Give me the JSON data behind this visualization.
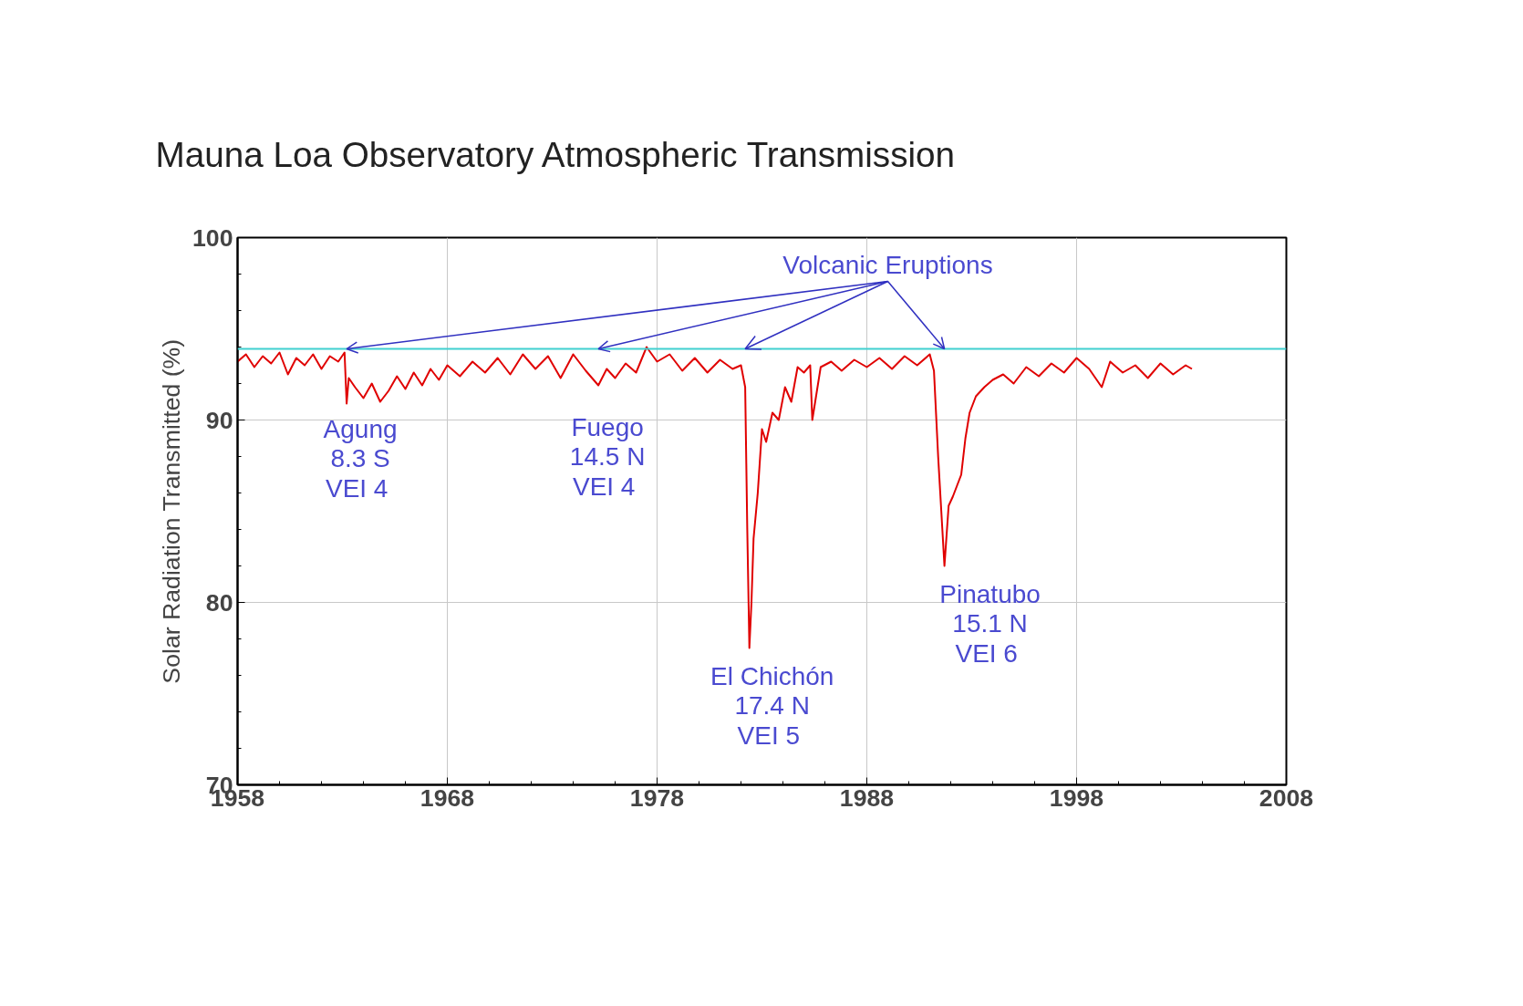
{
  "chart_data": {
    "type": "line",
    "title": "Mauna Loa Observatory Atmospheric Transmission",
    "ylabel": "Solar Radiation Transmitted (%)",
    "xlim": [
      1958,
      2008
    ],
    "xticks": [
      1958,
      1968,
      1978,
      1988,
      1998,
      2008
    ],
    "ylim": [
      70,
      100
    ],
    "yticks": [
      70,
      80,
      90,
      100
    ],
    "grid": true,
    "line_style": "solid",
    "marker": "none",
    "series": [
      {
        "color": "#e00000",
        "x": [
          1958,
          1958.4,
          1958.8,
          1959.2,
          1959.6,
          1960,
          1960.4,
          1960.8,
          1961.2,
          1961.6,
          1962,
          1962.4,
          1962.8,
          1963.1,
          1963.2,
          1963.3,
          1963.6,
          1964,
          1964.4,
          1964.8,
          1965.2,
          1965.6,
          1966,
          1966.4,
          1966.8,
          1967.2,
          1967.6,
          1968,
          1968.6,
          1969.2,
          1969.8,
          1970.4,
          1971,
          1971.6,
          1972.2,
          1972.8,
          1973.4,
          1974,
          1974.6,
          1975.2,
          1975.6,
          1976,
          1976.5,
          1977,
          1977.5,
          1978,
          1978.6,
          1979.2,
          1979.8,
          1980.4,
          1981,
          1981.6,
          1982,
          1982.2,
          1982.3,
          1982.4,
          1982.5,
          1982.6,
          1982.8,
          1983,
          1983.2,
          1983.5,
          1983.8,
          1984.1,
          1984.4,
          1984.7,
          1985,
          1985.3,
          1985.4,
          1985.8,
          1986.3,
          1986.8,
          1987.4,
          1988,
          1988.6,
          1989.2,
          1989.8,
          1990.4,
          1991,
          1991.2,
          1991.4,
          1991.6,
          1991.7,
          1991.9,
          1992.1,
          1992.3,
          1992.5,
          1992.7,
          1992.9,
          1993.2,
          1993.6,
          1994,
          1994.5,
          1995,
          1995.6,
          1996.2,
          1996.8,
          1997.4,
          1998,
          1998.6,
          1999.2,
          1999.6,
          2000.2,
          2000.8,
          2001.4,
          2002,
          2002.6,
          2003.2,
          2003.5
        ],
        "values": [
          93.2,
          93.6,
          92.9,
          93.5,
          93.1,
          93.7,
          92.5,
          93.4,
          93.0,
          93.6,
          92.8,
          93.5,
          93.2,
          93.7,
          90.9,
          92.3,
          91.8,
          91.2,
          92.0,
          91.0,
          91.6,
          92.4,
          91.7,
          92.6,
          91.9,
          92.8,
          92.2,
          93.0,
          92.4,
          93.2,
          92.6,
          93.4,
          92.5,
          93.6,
          92.8,
          93.5,
          92.3,
          93.6,
          92.7,
          91.9,
          92.8,
          92.3,
          93.1,
          92.6,
          94.0,
          93.2,
          93.6,
          92.7,
          93.4,
          92.6,
          93.3,
          92.8,
          93.0,
          91.8,
          84.0,
          77.5,
          80.0,
          83.5,
          86.0,
          89.5,
          88.8,
          90.4,
          90.0,
          91.8,
          91.0,
          92.9,
          92.6,
          93.0,
          90.0,
          92.9,
          93.2,
          92.7,
          93.3,
          92.9,
          93.4,
          92.8,
          93.5,
          93.0,
          93.6,
          92.7,
          88.0,
          84.0,
          82.0,
          85.3,
          85.8,
          86.4,
          87.0,
          89.0,
          90.4,
          91.3,
          91.8,
          92.2,
          92.5,
          92.0,
          92.9,
          92.4,
          93.1,
          92.6,
          93.4,
          92.8,
          91.8,
          93.2,
          92.6,
          93.0,
          92.3,
          93.1,
          92.5,
          93.0,
          92.8
        ]
      }
    ],
    "ref_lines": [
      {
        "axis": "y",
        "value": 93.9,
        "color": "#40d0d0",
        "line_style": "solid"
      }
    ],
    "annotations": [
      {
        "text": "Volcanic Eruptions",
        "x": 1982.2,
        "y": 93.9
      },
      {
        "text": "Agung\n8.3 S\nVEI  4",
        "x": 1963.2,
        "y": 90.9
      },
      {
        "text": "Fuego\n14.5 N\nVEI  4",
        "x": 1975.2,
        "y": 91.9
      },
      {
        "text": "El Chichón\n17.4 N\nVEI  5",
        "x": 1982.4,
        "y": 77.5
      },
      {
        "text": "Pinatubo\n15.1 N\nVEI  6",
        "x": 1991.7,
        "y": 82.0
      }
    ]
  }
}
